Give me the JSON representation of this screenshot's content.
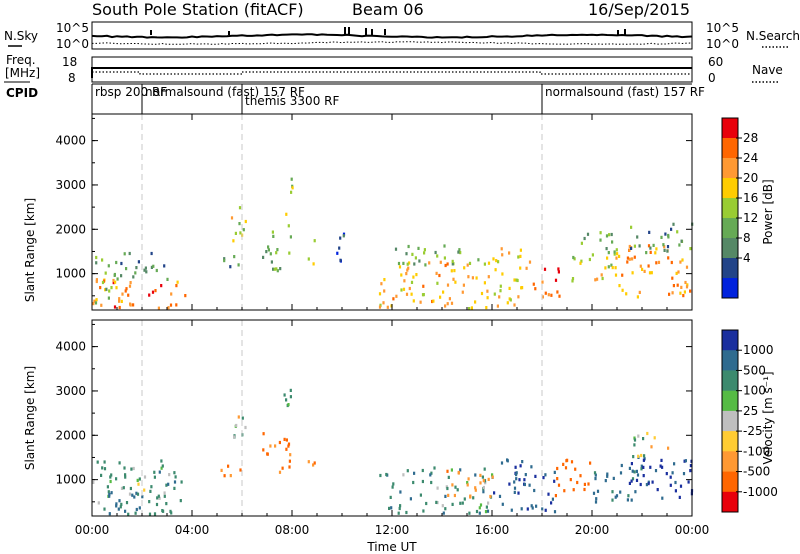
{
  "header": {
    "station": "South Pole Station (fitACF)",
    "beam": "Beam 06",
    "date": "16/Sep/2015"
  },
  "labels": {
    "nsky": "N.Sky",
    "nsearch": "N.Search",
    "freq_line1": "Freq.",
    "freq_line2": "[MHz]",
    "nave": "Nave",
    "cpid": "CPID",
    "nsky_ticks": [
      "10^5",
      "10^0"
    ],
    "nsearch_ticks": [
      "10^5",
      "10^0"
    ],
    "freq_ticks": [
      "18",
      "8"
    ],
    "nave_ticks": [
      "60",
      "0"
    ]
  },
  "cpid_segments": [
    {
      "label": "rbsp 200 RF",
      "start": 0.0
    },
    {
      "label": "normalsound (fast) 157 RF",
      "start": 2.0
    },
    {
      "label": "themis 3300 RF",
      "start": 6.0
    },
    {
      "label": "normalsound (fast) 157 RF",
      "start": 18.0
    }
  ],
  "x_axis": {
    "label": "Time UT",
    "tick_labels": [
      "00:00",
      "04:00",
      "08:00",
      "12:00",
      "16:00",
      "20:00",
      "00:00"
    ]
  },
  "power_panel": {
    "ylabel": "Slant Range [km]",
    "yticks": [
      "1000",
      "2000",
      "3000",
      "4000"
    ],
    "colorbar_label": "Power [dB]",
    "colorbar_ticks": [
      "28",
      "24",
      "20",
      "16",
      "12",
      "8",
      "4"
    ],
    "colors": [
      "#e8000b",
      "#ff6600",
      "#ff9933",
      "#ffcc00",
      "#99cc33",
      "#66aa55",
      "#558866",
      "#224488",
      "#0022dd"
    ]
  },
  "velocity_panel": {
    "ylabel": "Slant Range [km]",
    "yticks": [
      "1000",
      "2000",
      "3000",
      "4000"
    ],
    "colorbar_label": "Velocity [m s⁻¹]",
    "colorbar_ticks": [
      "1000",
      "500",
      "100",
      "25",
      "-25",
      "-100",
      "-500",
      "-1000"
    ],
    "colors": [
      "#1a2f9e",
      "#2f6b8f",
      "#3c8a6e",
      "#55bb44",
      "#bfbfbf",
      "#ffcc33",
      "#ff9933",
      "#ff6600",
      "#e8000b"
    ]
  },
  "chart_data": [
    {
      "type": "heatmap",
      "title": "Power",
      "xlabel": "Time UT",
      "ylabel": "Slant Range [km]",
      "xlim": [
        0,
        24
      ],
      "ylim": [
        180,
        4600
      ],
      "zlabel": "Power [dB]",
      "zticks": [
        4,
        8,
        12,
        16,
        20,
        24,
        28
      ],
      "clusters": [
        {
          "t0": 0.0,
          "t1": 3.8,
          "r0": 200,
          "r1": 900,
          "v": 26
        },
        {
          "t0": 0.1,
          "t1": 1.0,
          "r0": 200,
          "r1": 1500,
          "v": 14
        },
        {
          "t0": 1.0,
          "t1": 2.0,
          "r0": 900,
          "r1": 1500,
          "v": 8
        },
        {
          "t0": 2.0,
          "t1": 3.0,
          "r0": 900,
          "r1": 1500,
          "v": 10
        },
        {
          "t0": 5.1,
          "t1": 5.9,
          "r0": 1100,
          "r1": 1500,
          "v": 8
        },
        {
          "t0": 5.5,
          "t1": 6.2,
          "r0": 1700,
          "r1": 2600,
          "v": 18
        },
        {
          "t0": 6.8,
          "t1": 8.0,
          "r0": 1100,
          "r1": 2100,
          "v": 12
        },
        {
          "t0": 7.6,
          "t1": 8.0,
          "r0": 2100,
          "r1": 3200,
          "v": 16
        },
        {
          "t0": 8.6,
          "t1": 9.0,
          "r0": 1200,
          "r1": 1800,
          "v": 20
        },
        {
          "t0": 9.7,
          "t1": 10.4,
          "r0": 1300,
          "r1": 2000,
          "v": 6
        },
        {
          "t0": 11.4,
          "t1": 16.0,
          "r0": 200,
          "r1": 1300,
          "v": 22
        },
        {
          "t0": 12.0,
          "t1": 15.5,
          "r0": 1200,
          "r1": 1700,
          "v": 12
        },
        {
          "t0": 16.0,
          "t1": 17.5,
          "r0": 200,
          "r1": 1600,
          "v": 20
        },
        {
          "t0": 17.5,
          "t1": 18.8,
          "r0": 500,
          "r1": 1200,
          "v": 28
        },
        {
          "t0": 18.8,
          "t1": 21.0,
          "r0": 800,
          "r1": 1500,
          "v": 18
        },
        {
          "t0": 19.5,
          "t1": 21.0,
          "r0": 1500,
          "r1": 2100,
          "v": 12
        },
        {
          "t0": 21.0,
          "t1": 24.0,
          "r0": 500,
          "r1": 1700,
          "v": 24
        },
        {
          "t0": 21.5,
          "t1": 24.0,
          "r0": 1500,
          "r1": 2200,
          "v": 10
        }
      ]
    },
    {
      "type": "heatmap",
      "title": "Velocity",
      "xlabel": "Time UT",
      "ylabel": "Slant Range [km]",
      "xlim": [
        0,
        24
      ],
      "ylim": [
        180,
        4600
      ],
      "zlabel": "Velocity [m s⁻¹]",
      "zticks": [
        -1000,
        -500,
        -100,
        -25,
        25,
        100,
        500,
        1000
      ],
      "clusters": [
        {
          "t0": 0.0,
          "t1": 3.8,
          "r0": 200,
          "r1": 1500,
          "v": 150
        },
        {
          "t0": 0.5,
          "t1": 2.0,
          "r0": 200,
          "r1": 900,
          "v": 600
        },
        {
          "t0": 5.1,
          "t1": 5.9,
          "r0": 1100,
          "r1": 1500,
          "v": -300
        },
        {
          "t0": 5.5,
          "t1": 6.2,
          "r0": 1700,
          "r1": 2600,
          "v": 100
        },
        {
          "t0": 6.8,
          "t1": 8.0,
          "r0": 1100,
          "r1": 2100,
          "v": -400
        },
        {
          "t0": 7.6,
          "t1": 8.0,
          "r0": 2100,
          "r1": 3200,
          "v": 120
        },
        {
          "t0": 8.6,
          "t1": 9.0,
          "r0": 1200,
          "r1": 1800,
          "v": -300
        },
        {
          "t0": 11.4,
          "t1": 16.0,
          "r0": 200,
          "r1": 1300,
          "v": 200
        },
        {
          "t0": 14.0,
          "t1": 16.0,
          "r0": 600,
          "r1": 1300,
          "v": -150
        },
        {
          "t0": 16.0,
          "t1": 18.5,
          "r0": 300,
          "r1": 1500,
          "v": 700
        },
        {
          "t0": 18.5,
          "t1": 20.0,
          "r0": 600,
          "r1": 1500,
          "v": -500
        },
        {
          "t0": 20.0,
          "t1": 22.0,
          "r0": 500,
          "r1": 1400,
          "v": 300
        },
        {
          "t0": 21.0,
          "t1": 24.0,
          "r0": 600,
          "r1": 1600,
          "v": 800
        },
        {
          "t0": 21.5,
          "t1": 23.0,
          "r0": 1500,
          "r1": 2100,
          "v": 10
        }
      ]
    }
  ]
}
